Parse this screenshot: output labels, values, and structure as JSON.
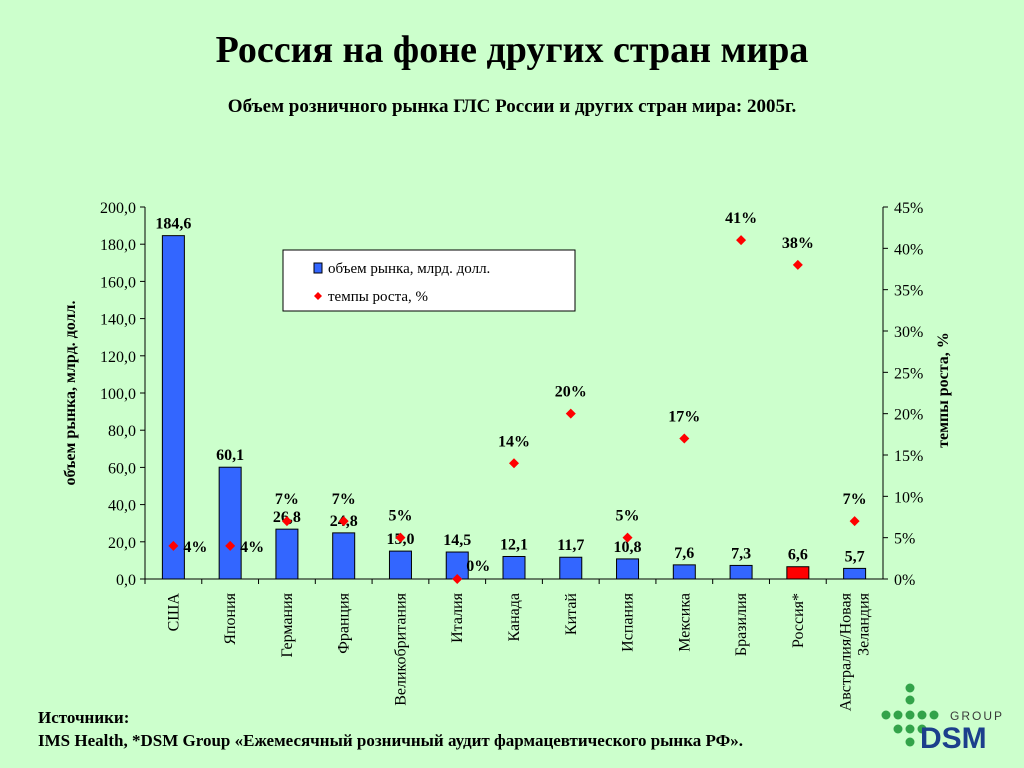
{
  "page": {
    "title": "Россия  на фоне других стран мира",
    "subtitle": "Объем розничного рынка ГЛС России и других стран мира: 2005г."
  },
  "sources": {
    "label": "Источники:",
    "text": "IMS Health, *DSM Group «Ежемесячный розничный аудит фармацевтического рынка РФ»."
  },
  "logo": {
    "top_text": "GROUP",
    "main_text": "DSM"
  },
  "colors": {
    "bar": "#3366ff",
    "bar_highlight": "#ff0000",
    "marker": "#ff0000",
    "background": "#ccffcc"
  },
  "chart_data": {
    "type": "bar",
    "categories": [
      "США",
      "Япония",
      "Германия",
      "Франция",
      "Великобритания",
      "Италия",
      "Канада",
      "Китай",
      "Испания",
      "Мексика",
      "Бразилия",
      "Россия*",
      "Австралия/Новая Зеландия"
    ],
    "series": [
      {
        "name": "объем рынка, млрд. долл.",
        "type": "bar",
        "axis": "left",
        "values": [
          184.6,
          60.1,
          26.8,
          24.8,
          15.0,
          14.5,
          12.1,
          11.7,
          10.8,
          7.6,
          7.3,
          6.6,
          5.7
        ],
        "labels": [
          "184,6",
          "60,1",
          "26,8",
          "24,8",
          "15,0",
          "14,5",
          "12,1",
          "11,7",
          "10,8",
          "7,6",
          "7,3",
          "6,6",
          "5,7"
        ],
        "highlight_index": 11
      },
      {
        "name": "темпы роста, %",
        "type": "scatter",
        "axis": "right",
        "values": [
          4,
          4,
          7,
          7,
          5,
          0,
          14,
          20,
          5,
          17,
          41,
          38,
          7
        ],
        "labels": [
          "4%",
          "4%",
          "7%",
          "7%",
          "5%",
          "0%",
          "14%",
          "20%",
          "5%",
          "17%",
          "41%",
          "38%",
          "7%"
        ]
      }
    ],
    "ylabel": "объем рынка, млрд. долл.",
    "y2label": "темпы роста, %",
    "ylim": [
      0,
      200
    ],
    "yticks": [
      "0,0",
      "20,0",
      "40,0",
      "60,0",
      "80,0",
      "100,0",
      "120,0",
      "140,0",
      "160,0",
      "180,0",
      "200,0"
    ],
    "y2lim": [
      0,
      45
    ],
    "y2ticks": [
      "0%",
      "5%",
      "10%",
      "15%",
      "20%",
      "25%",
      "30%",
      "35%",
      "40%",
      "45%"
    ],
    "legend_position": "top-center",
    "grid": false
  }
}
